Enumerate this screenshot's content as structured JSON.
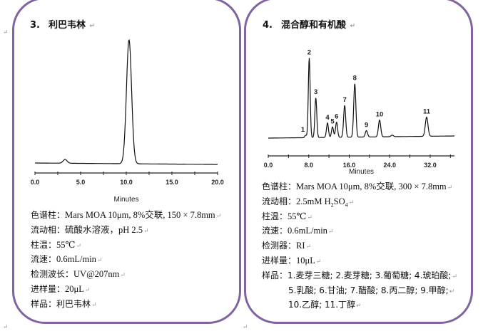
{
  "left": {
    "title_num": "3.",
    "title": "利巴韦林",
    "lines": [
      {
        "label": "色谱柱：",
        "value": "Mars MOA 10μm, 8%交联, 150 × 7.8mm"
      },
      {
        "label": "流动相：",
        "value": "硫酸水溶液，pH 2.5"
      },
      {
        "label": "柱温：",
        "value": "55℃"
      },
      {
        "label": "流速：",
        "value": "0.6mL/min"
      },
      {
        "label": "检测波长：",
        "value": "UV@207nm"
      },
      {
        "label": "进样量：",
        "value": "20μL"
      },
      {
        "label": "样品：",
        "value": "利巴韦林"
      }
    ]
  },
  "right": {
    "title_num": "4.",
    "title": "混合醇和有机酸",
    "lines": [
      {
        "label": "色谱柱：",
        "value": "Mars MOA 10μm, 8%交联, 300 × 7.8mm"
      },
      {
        "label": "流动相：",
        "value": "2.5mM H",
        "sub1": "2",
        "value2": "SO",
        "sub2": "4"
      },
      {
        "label": "柱温：",
        "value": "55℃"
      },
      {
        "label": "流速：",
        "value": "0.6mL/min"
      },
      {
        "label": "检测器：",
        "value": "RI"
      },
      {
        "label": "进样量：",
        "value": "10μL"
      },
      {
        "label": "样品：",
        "value": "1.麦芽三糖; 2.麦芽糖; 3.葡萄糖; 4.琥珀酸;"
      }
    ],
    "sample_cont": [
      "5.乳酸; 6.甘油; 7.醋酸; 8.丙二醇; 9.甲醇;",
      "10.乙醇; 11.丁醇"
    ]
  },
  "chart_data": [
    {
      "type": "line",
      "title": "",
      "xlabel": "Minutes",
      "ylabel": "",
      "xlim": [
        0,
        20
      ],
      "xticks": [
        "0.0",
        "5.0",
        "10.0",
        "15.0",
        "20.0"
      ],
      "grid": false,
      "line_color": "#111111",
      "peaks": [
        {
          "label": "",
          "time": 3.3,
          "rel_height": 3
        },
        {
          "label": "",
          "time": 10.3,
          "rel_height": 100
        }
      ]
    },
    {
      "type": "line",
      "title": "",
      "xlabel": "Minutes",
      "ylabel": "",
      "xlim": [
        0,
        36.8
      ],
      "xticks": [
        "0.0",
        "8.0",
        "16.0",
        "24.0",
        "32.0"
      ],
      "grid": false,
      "line_color": "#111111",
      "peaks": [
        {
          "label": "1",
          "time": 7.4,
          "rel_height": 3
        },
        {
          "label": "2",
          "time": 8.1,
          "rel_height": 100
        },
        {
          "label": "3",
          "time": 9.4,
          "rel_height": 50
        },
        {
          "label": "4",
          "time": 11.7,
          "rel_height": 18
        },
        {
          "label": "5",
          "time": 12.7,
          "rel_height": 13
        },
        {
          "label": "6",
          "time": 13.5,
          "rel_height": 19
        },
        {
          "label": "7",
          "time": 15.1,
          "rel_height": 40
        },
        {
          "label": "8",
          "time": 17.1,
          "rel_height": 67
        },
        {
          "label": "9",
          "time": 19.4,
          "rel_height": 8
        },
        {
          "label": "10",
          "time": 22.0,
          "rel_height": 21
        },
        {
          "label": "",
          "time": 24.5,
          "rel_height": 2
        },
        {
          "label": "11",
          "time": 31.3,
          "rel_height": 24
        }
      ]
    }
  ]
}
